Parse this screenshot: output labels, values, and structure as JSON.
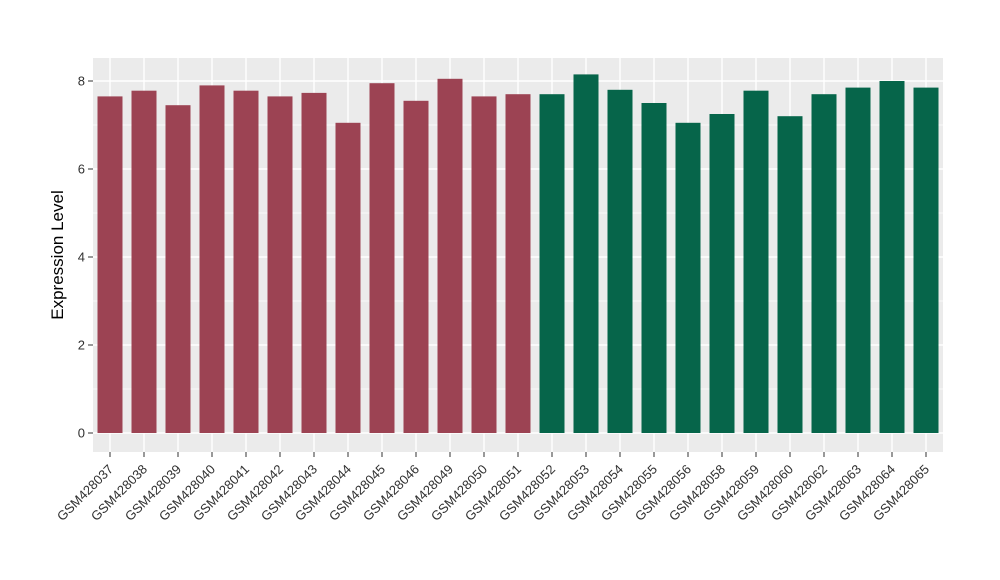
{
  "figure": {
    "background": "#FFFFFF",
    "panel_background": "#EBEBEB",
    "gridline_color": "#FFFFFF",
    "tick_mark_color": "#333333",
    "tick_label_color": "#303030",
    "axis_title_color": "#000000"
  },
  "chart_data": {
    "type": "bar",
    "title": "",
    "xlabel": "",
    "ylabel": "Expression Level",
    "ylim": [
      0,
      8.52
    ],
    "yticks": [
      0,
      2,
      4,
      6,
      8
    ],
    "yticks_minor": [
      1,
      3,
      5,
      7
    ],
    "grid": "major and minor, white on gray panel",
    "legend_position": "none",
    "x_label_rotation_deg": 45,
    "categories": [
      "GSM428037",
      "GSM428038",
      "GSM428039",
      "GSM428040",
      "GSM428041",
      "GSM428042",
      "GSM428043",
      "GSM428044",
      "GSM428045",
      "GSM428046",
      "GSM428049",
      "GSM428050",
      "GSM428051",
      "GSM428052",
      "GSM428053",
      "GSM428054",
      "GSM428055",
      "GSM428056",
      "GSM428058",
      "GSM428059",
      "GSM428060",
      "GSM428062",
      "GSM428063",
      "GSM428064",
      "GSM428065"
    ],
    "values": [
      7.65,
      7.78,
      7.45,
      7.9,
      7.78,
      7.65,
      7.73,
      7.05,
      7.95,
      7.55,
      8.05,
      7.65,
      7.7,
      7.7,
      8.15,
      7.8,
      7.5,
      7.05,
      7.25,
      7.78,
      7.2,
      7.7,
      7.85,
      8.0,
      7.85
    ],
    "bar_group": [
      "red",
      "red",
      "red",
      "red",
      "red",
      "red",
      "red",
      "red",
      "red",
      "red",
      "red",
      "red",
      "red",
      "green",
      "green",
      "green",
      "green",
      "green",
      "green",
      "green",
      "green",
      "green",
      "green",
      "green",
      "green"
    ],
    "group_colors": {
      "red": "#9C4353",
      "green": "#06654A"
    }
  }
}
